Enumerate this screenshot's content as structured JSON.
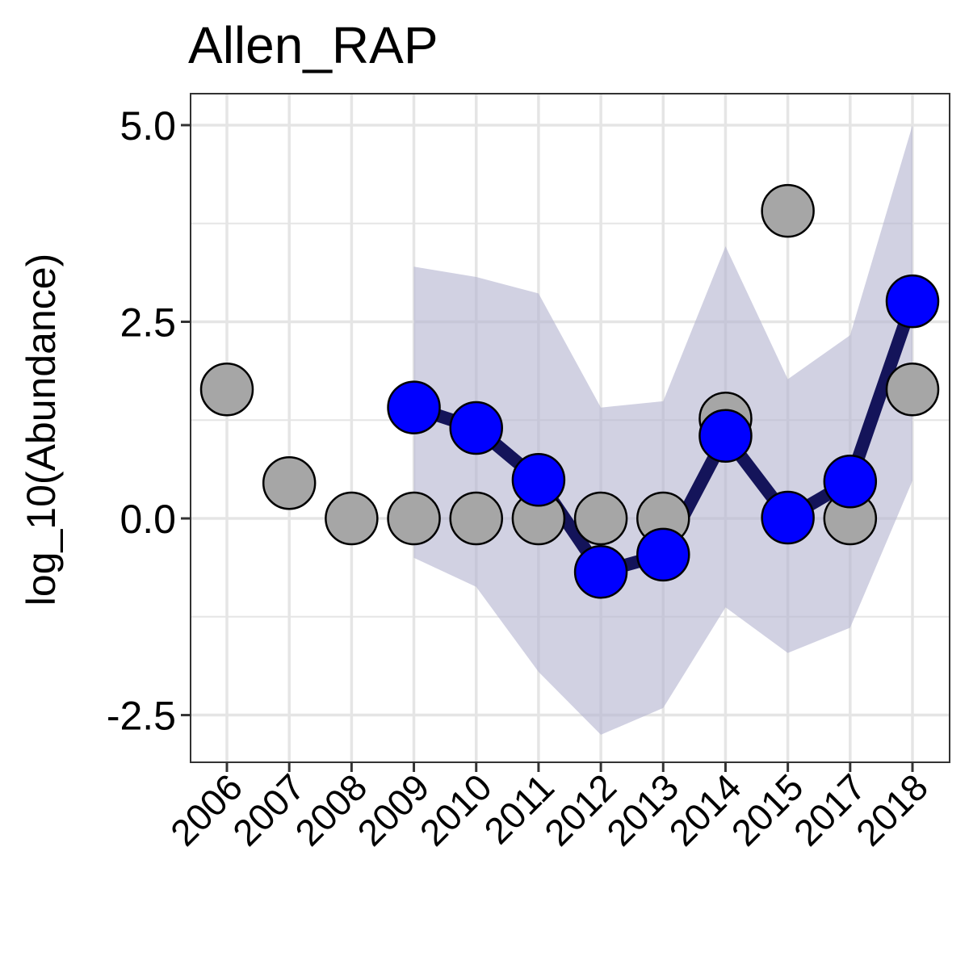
{
  "chart_data": {
    "type": "line",
    "title": "Allen_RAP",
    "xlabel": "",
    "ylabel": "log_10(Abundance)",
    "categories": [
      "2006",
      "2007",
      "2008",
      "2009",
      "2010",
      "2011",
      "2012",
      "2013",
      "2014",
      "2015",
      "2017",
      "2018"
    ],
    "ylim": [
      -3.1,
      5.4
    ],
    "yticks": [
      5.0,
      2.5,
      0.0,
      -2.5
    ],
    "ytick_labels": [
      "5.0",
      "2.5",
      "0.0",
      "-2.5"
    ],
    "grid": true,
    "observed": [
      1.64,
      0.45,
      0.0,
      0.0,
      0.0,
      0.0,
      0.0,
      0.0,
      1.27,
      3.91,
      0.0,
      1.64
    ],
    "estimate": [
      null,
      null,
      null,
      1.41,
      1.15,
      0.49,
      -0.68,
      -0.46,
      1.05,
      0.01,
      0.47,
      2.76
    ],
    "ci_lower": [
      null,
      null,
      null,
      -0.5,
      -0.87,
      -1.95,
      -2.75,
      -2.41,
      -1.13,
      -1.71,
      -1.39,
      0.48
    ],
    "ci_upper": [
      null,
      null,
      null,
      3.2,
      3.07,
      2.86,
      1.41,
      1.49,
      3.46,
      1.77,
      2.33,
      5.0
    ],
    "colors": {
      "observed_fill": "#a6a6a6",
      "estimate_fill": "#0000ff",
      "line": "#14145a",
      "ribbon": "#b3b3cf",
      "grid": "#e5e5e5"
    }
  }
}
